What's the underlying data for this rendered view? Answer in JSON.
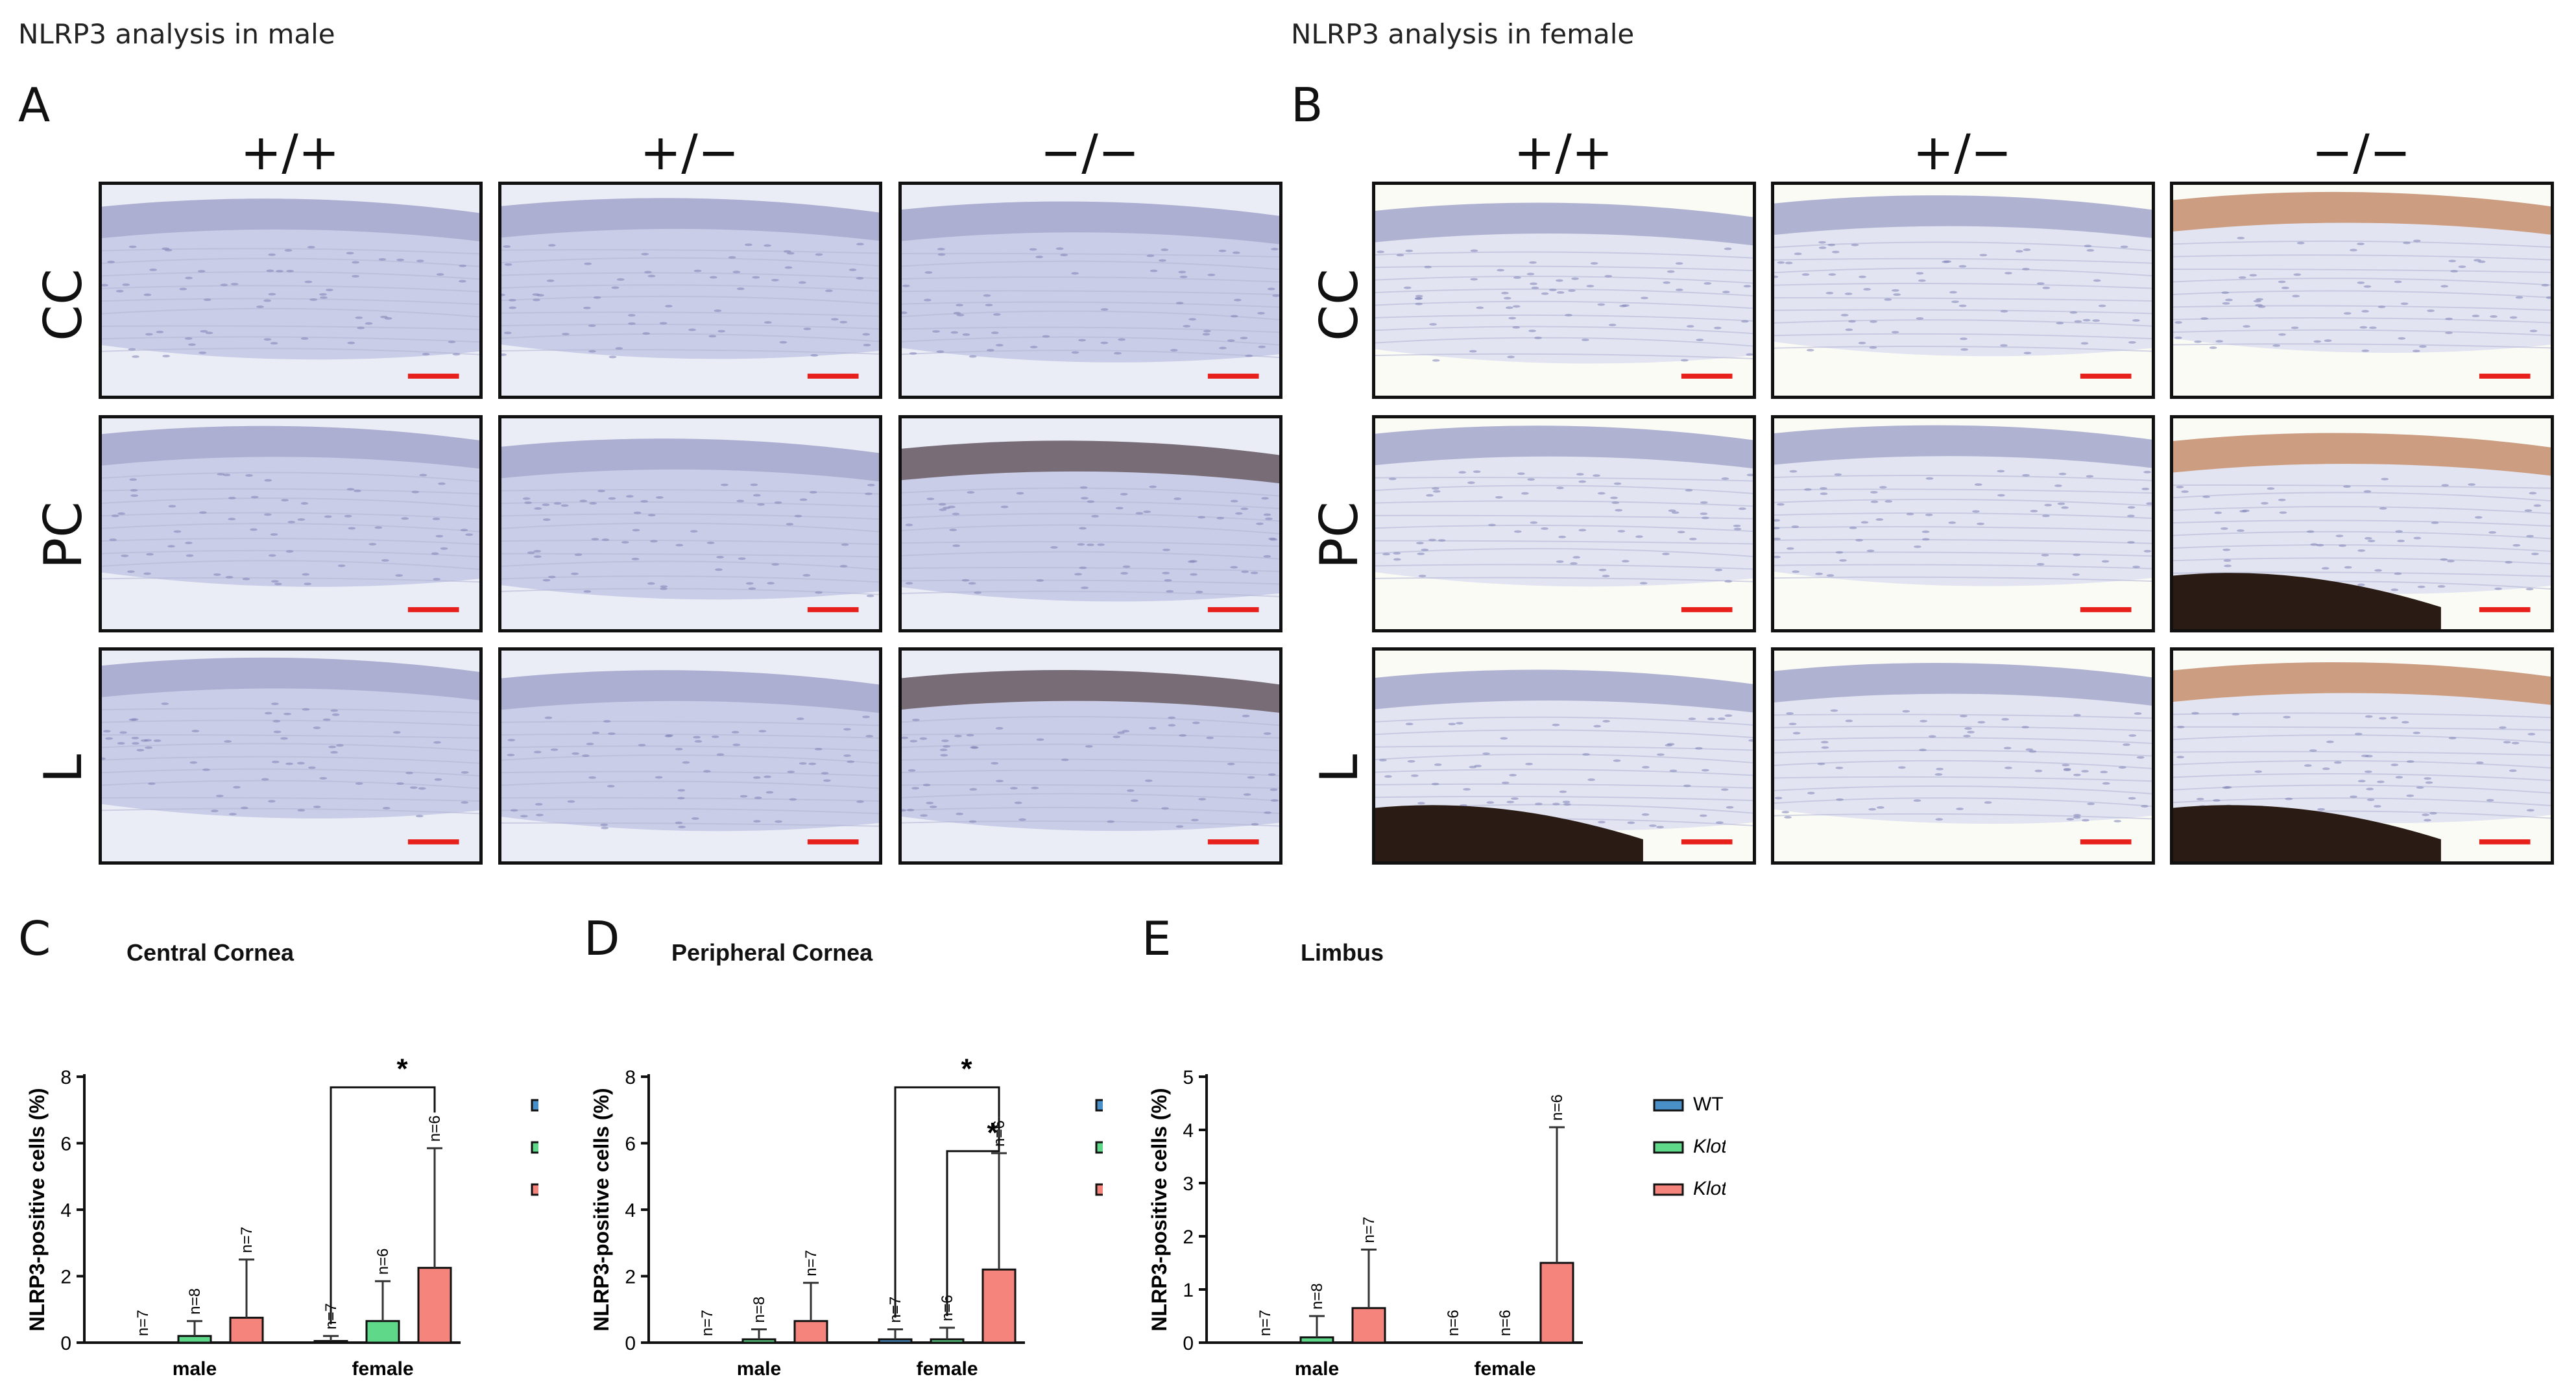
{
  "figure": {
    "title_male": "NLRP3 analysis in male",
    "title_female": "NLRP3 analysis in female",
    "panel_letters": {
      "A": "A",
      "B": "B",
      "C": "C",
      "D": "D",
      "E": "E"
    },
    "genotypes": [
      "+/+",
      "+/−",
      "−/−"
    ],
    "regions": [
      "CC",
      "PC",
      "L"
    ]
  },
  "colors": {
    "wt": "#4a90c8",
    "het": "#5fd88a",
    "ko": "#f4847c",
    "scale_bar": "#e8201c",
    "panel_border": "#111111"
  },
  "legend": {
    "wt": "WT",
    "het_base": "Klotho",
    "het_sup": "+/−",
    "ko_base": "Klotho",
    "ko_sup": "−/−"
  },
  "chart_data": [
    {
      "panel": "C",
      "type": "bar",
      "title": "Central Cornea",
      "ylabel": "NLRP3-positive cells (%)",
      "ylim": [
        0,
        8
      ],
      "yticks": [
        0,
        2,
        4,
        6,
        8
      ],
      "categories": [
        "male",
        "female"
      ],
      "series": [
        {
          "name": "WT",
          "values": [
            0,
            0.05
          ],
          "errors": [
            0,
            0.15
          ],
          "n": [
            "n=7",
            "n=7"
          ]
        },
        {
          "name": "Klotho+/−",
          "values": [
            0.2,
            0.65
          ],
          "errors": [
            0.45,
            1.2
          ],
          "n": [
            "n=8",
            "n=6"
          ]
        },
        {
          "name": "Klotho−/−",
          "values": [
            0.75,
            2.25
          ],
          "errors": [
            1.75,
            3.6
          ],
          "n": [
            "n=7",
            "n=6"
          ]
        }
      ],
      "significance": [
        {
          "label": "*",
          "from_category": "female",
          "from_series": 0,
          "to_series": 2
        }
      ]
    },
    {
      "panel": "D",
      "type": "bar",
      "title": "Peripheral Cornea",
      "ylabel": "NLRP3-positive cells (%)",
      "ylim": [
        0,
        8
      ],
      "yticks": [
        0,
        2,
        4,
        6,
        8
      ],
      "categories": [
        "male",
        "female"
      ],
      "series": [
        {
          "name": "WT",
          "values": [
            0,
            0.1
          ],
          "errors": [
            0,
            0.3
          ],
          "n": [
            "n=7",
            "n=7"
          ]
        },
        {
          "name": "Klotho+/−",
          "values": [
            0.1,
            0.1
          ],
          "errors": [
            0.3,
            0.35
          ],
          "n": [
            "n=8",
            "n=6"
          ]
        },
        {
          "name": "Klotho−/−",
          "values": [
            0.65,
            2.2
          ],
          "errors": [
            1.15,
            3.5
          ],
          "n": [
            "n=7",
            "n=6"
          ]
        }
      ],
      "significance": [
        {
          "label": "*",
          "from_category": "female",
          "from_series": 0,
          "to_series": 2
        },
        {
          "label": "*",
          "from_category": "female",
          "from_series": 1,
          "to_series": 2
        }
      ]
    },
    {
      "panel": "E",
      "type": "bar",
      "title": "Limbus",
      "ylabel": "NLRP3-positive cells (%)",
      "ylim": [
        0,
        5
      ],
      "yticks": [
        0,
        1,
        2,
        3,
        4,
        5
      ],
      "categories": [
        "male",
        "female"
      ],
      "series": [
        {
          "name": "WT",
          "values": [
            0,
            0
          ],
          "errors": [
            0,
            0
          ],
          "n": [
            "n=7",
            "n=6"
          ]
        },
        {
          "name": "Klotho+/−",
          "values": [
            0.1,
            0
          ],
          "errors": [
            0.4,
            0
          ],
          "n": [
            "n=8",
            "n=6"
          ]
        },
        {
          "name": "Klotho−/−",
          "values": [
            0.65,
            1.5
          ],
          "errors": [
            1.1,
            2.55
          ],
          "n": [
            "n=7",
            "n=6"
          ]
        }
      ],
      "significance": []
    }
  ]
}
